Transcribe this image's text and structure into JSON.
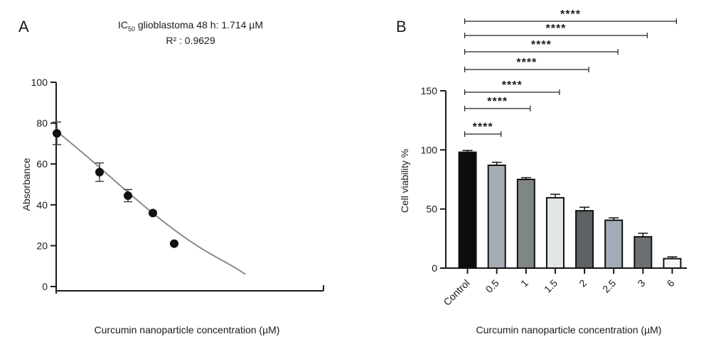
{
  "chart_data": [
    {
      "type": "scatter",
      "panel_label": "A",
      "title_prefix": "IC",
      "title_subscript": "50",
      "title_suffix": " glioblastoma 48 h: 1.714 µM",
      "subtitle": "R² : 0.9629",
      "xlabel": "Curcumin nanoparticle concentration (µM)",
      "ylabel": "Absorbance",
      "ylim": [
        0,
        100
      ],
      "yticks": [
        "0",
        "20",
        "40",
        "60",
        "80",
        "100"
      ],
      "xlim": [
        0,
        6.6
      ],
      "points": [
        {
          "x": 0,
          "y": 75,
          "err": 5.5
        },
        {
          "x": 1.2,
          "y": 56,
          "err": 4.5
        },
        {
          "x": 2.0,
          "y": 44.5,
          "err": 3
        },
        {
          "x": 2.7,
          "y": 36,
          "err": 0
        },
        {
          "x": 3.3,
          "y": 21,
          "err": 0
        }
      ],
      "fit_curve": {
        "x": [
          0,
          1,
          2,
          3,
          4,
          5,
          5.3
        ],
        "y": [
          76,
          61.5,
          46,
          31.5,
          19,
          9.5,
          6
        ]
      },
      "marker_color": "#111111",
      "curve_color": "#8a8a8a",
      "grid": false
    },
    {
      "type": "bar",
      "panel_label": "B",
      "xlabel": "Curcumin nanoparticle concentration (µM)",
      "ylabel": "Cell viability %",
      "ylim": [
        0,
        150
      ],
      "yticks": [
        "0",
        "50",
        "100",
        "150"
      ],
      "categories": [
        "Control",
        "0.5",
        "1",
        "1.5",
        "2",
        "2.5",
        "3",
        "6"
      ],
      "values": [
        98,
        87,
        75,
        59.5,
        48.5,
        40.5,
        26.5,
        8
      ],
      "errors": [
        1.5,
        2.5,
        1.5,
        3,
        3,
        2,
        3,
        1.5
      ],
      "bar_colors": [
        "#0d0d0d",
        "#a6acb3",
        "#7f8784",
        "#e3e6e6",
        "#5c6263",
        "#a3acb6",
        "#6a7072",
        "#f7f7f7"
      ],
      "grid": false,
      "comparisons": [
        {
          "from": "Control",
          "to": "0.5",
          "label": "****"
        },
        {
          "from": "Control",
          "to": "1",
          "label": "****"
        },
        {
          "from": "Control",
          "to": "1.5",
          "label": "****"
        },
        {
          "from": "Control",
          "to": "2",
          "label": "****"
        },
        {
          "from": "Control",
          "to": "2.5",
          "label": "****"
        },
        {
          "from": "Control",
          "to": "3",
          "label": "****"
        },
        {
          "from": "Control",
          "to": "6",
          "label": "****"
        }
      ]
    }
  ]
}
